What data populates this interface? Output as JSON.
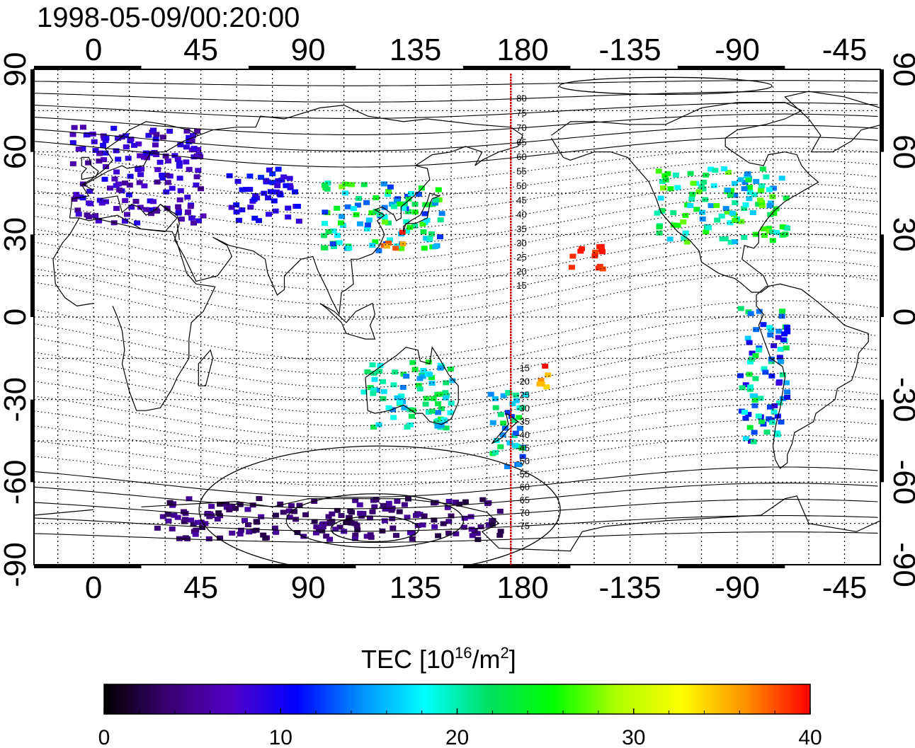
{
  "timestamp": "1998-05-09/00:20:00",
  "map": {
    "projection": "equirectangular",
    "center_longitude": 135,
    "lon_range": [
      -25,
      330
    ],
    "lat_range": [
      -90,
      90
    ],
    "lon_ticks": [
      {
        "lon": 0,
        "label": "0"
      },
      {
        "lon": 45,
        "label": "45"
      },
      {
        "lon": 90,
        "label": "90"
      },
      {
        "lon": 135,
        "label": "135"
      },
      {
        "lon": 180,
        "label": "180"
      },
      {
        "lon": 225,
        "label": "-135"
      },
      {
        "lon": 270,
        "label": "-90"
      },
      {
        "lon": 315,
        "label": "-45"
      }
    ],
    "lat_ticks": [
      {
        "lat": 90,
        "label": "90"
      },
      {
        "lat": 60,
        "label": "60"
      },
      {
        "lat": 30,
        "label": "30"
      },
      {
        "lat": 0,
        "label": "0"
      },
      {
        "lat": -30,
        "label": "-30"
      },
      {
        "lat": -60,
        "label": "-60"
      },
      {
        "lat": -90,
        "label": "-90"
      }
    ],
    "meridian_line": {
      "lon": 175,
      "color": "#d40000"
    },
    "magnetic_latitude_labels": [
      "80",
      "75",
      "70",
      "65",
      "60",
      "55",
      "50",
      "45",
      "40",
      "35",
      "30",
      "25",
      "20",
      "15",
      "-15",
      "-20",
      "-25",
      "-30",
      "-35",
      "-40",
      "-45",
      "-50",
      "-55",
      "-60",
      "-65",
      "-70",
      "-75"
    ]
  },
  "colorbar": {
    "title_prefix": "TEC  [10",
    "title_exp": "16",
    "title_mid": "/m",
    "title_exp2": "2",
    "title_suffix": "]",
    "min": 0,
    "max": 40,
    "ticks": [
      "0",
      "10",
      "20",
      "30",
      "40"
    ],
    "colors": [
      "#000000",
      "#3a0070",
      "#5000c8",
      "#0000ff",
      "#0090ff",
      "#00ffff",
      "#00e060",
      "#00ff00",
      "#b0ff00",
      "#ffff00",
      "#ff9000",
      "#ff0000"
    ]
  },
  "chart_data": {
    "type": "heatmap",
    "variable": "TEC",
    "units": "10^16/m^2",
    "value_range": [
      0,
      40
    ],
    "regions": [
      {
        "lon": [
          -10,
          45
        ],
        "lat": [
          35,
          70
        ],
        "tec_range": [
          5,
          10
        ]
      },
      {
        "lon": [
          55,
          85
        ],
        "lat": [
          35,
          55
        ],
        "tec_range": [
          8,
          12
        ]
      },
      {
        "lon": [
          95,
          145
        ],
        "lat": [
          25,
          50
        ],
        "tec_range": [
          12,
          28
        ]
      },
      {
        "lon": [
          120,
          130
        ],
        "lat": [
          25,
          32
        ],
        "tec_range": [
          35,
          40
        ]
      },
      {
        "lon": [
          198,
          213
        ],
        "lat": [
          18,
          28
        ],
        "tec_range": [
          38,
          40
        ]
      },
      {
        "lon": [
          235,
          290
        ],
        "lat": [
          28,
          55
        ],
        "tec_range": [
          14,
          28
        ]
      },
      {
        "lon": [
          270,
          290
        ],
        "lat": [
          -45,
          5
        ],
        "tec_range": [
          8,
          24
        ]
      },
      {
        "lon": [
          112,
          150
        ],
        "lat": [
          -40,
          -15
        ],
        "tec_range": [
          14,
          24
        ]
      },
      {
        "lon": [
          165,
          180
        ],
        "lat": [
          -55,
          -25
        ],
        "tec_range": [
          12,
          24
        ]
      },
      {
        "lon": [
          185,
          190
        ],
        "lat": [
          -25,
          -15
        ],
        "tec_range": [
          34,
          40
        ]
      },
      {
        "lon": [
          25,
          170
        ],
        "lat": [
          -80,
          -65
        ],
        "tec_range": [
          2,
          6
        ]
      }
    ]
  }
}
